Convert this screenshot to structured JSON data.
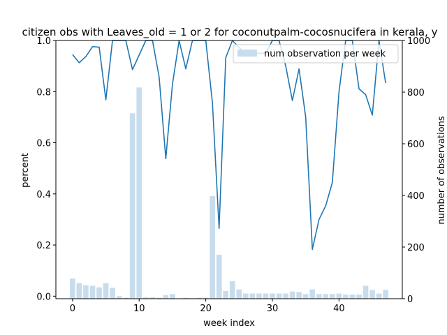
{
  "chart_data": {
    "type": "bar",
    "title": "citizen obs with Leaves_old = 1 or 2 for coconutpalm-cocosnucifera in kerala, y",
    "xlabel": "week index",
    "ylabel_left": "percent",
    "ylabel_right": "number of observations",
    "xlim": [
      -2.5,
      49.5
    ],
    "ylim_left": [
      -0.01,
      1.0
    ],
    "ylim_right": [
      0,
      1000
    ],
    "x_ticks": [
      0,
      10,
      20,
      30,
      40
    ],
    "y_left_ticks": [
      0.0,
      0.2,
      0.4,
      0.6,
      0.8,
      1.0
    ],
    "y_right_ticks": [
      0,
      200,
      400,
      600,
      800,
      1000
    ],
    "legend": {
      "position": "upper right",
      "entries": [
        "num observation per week"
      ]
    },
    "x": [
      0,
      1,
      2,
      3,
      4,
      5,
      6,
      7,
      8,
      9,
      10,
      11,
      12,
      13,
      14,
      15,
      16,
      17,
      18,
      19,
      20,
      21,
      22,
      23,
      24,
      25,
      26,
      27,
      28,
      29,
      30,
      31,
      32,
      33,
      34,
      35,
      36,
      37,
      38,
      39,
      40,
      41,
      42,
      43,
      44,
      45,
      46,
      47
    ],
    "series": [
      {
        "name": "num observation per week",
        "kind": "bar",
        "axis": "right",
        "color": "#c7dcec",
        "values": [
          78,
          60,
          52,
          50,
          44,
          60,
          42,
          10,
          4,
          718,
          818,
          6,
          6,
          4,
          14,
          18,
          0,
          4,
          2,
          4,
          4,
          397,
          170,
          30,
          68,
          36,
          20,
          20,
          20,
          20,
          20,
          20,
          20,
          28,
          26,
          18,
          36,
          18,
          18,
          18,
          20,
          16,
          16,
          16,
          50,
          34,
          20,
          34
        ]
      },
      {
        "kind": "line",
        "axis": "left",
        "color": "#1f77b4",
        "values": [
          0.945,
          0.913,
          0.937,
          0.976,
          0.974,
          0.768,
          1.0,
          1.0,
          1.0,
          0.886,
          0.943,
          1.0,
          1.0,
          0.857,
          0.538,
          0.829,
          1.0,
          0.889,
          1.0,
          1.0,
          1.0,
          0.756,
          0.265,
          0.933,
          1.0,
          0.972,
          0.95,
          0.95,
          0.95,
          0.95,
          1.0,
          1.0,
          0.9,
          0.765,
          0.889,
          0.7,
          0.183,
          0.3,
          0.353,
          0.445,
          0.8,
          1.0,
          1.0,
          0.811,
          0.788,
          0.708,
          1.0,
          0.833
        ]
      }
    ]
  }
}
